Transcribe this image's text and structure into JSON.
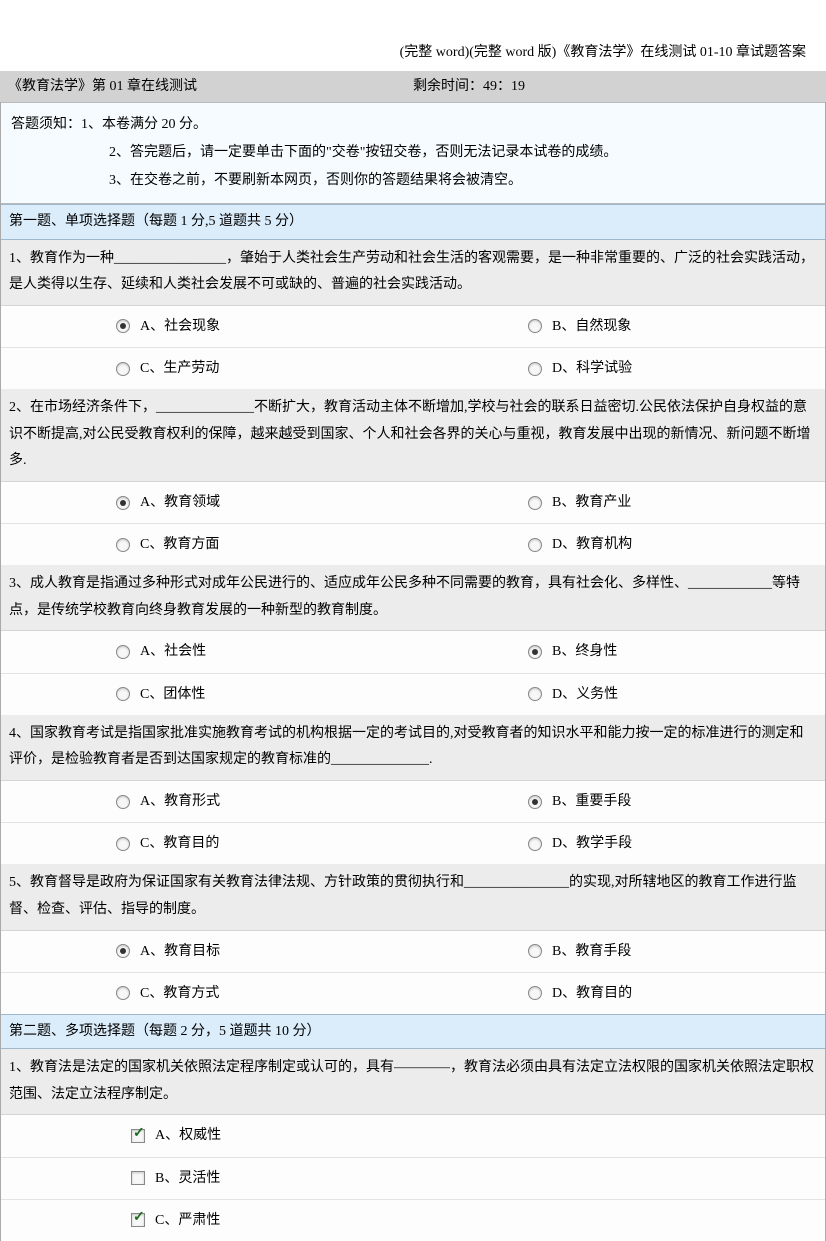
{
  "doc_title": "(完整 word)(完整 word 版)《教育法学》在线测试 01-10 章试题答案",
  "header": {
    "left": "《教育法学》第 01 章在线测试",
    "right": "剩余时间：49：19"
  },
  "instructions": {
    "line1": "答题须知：1、本卷满分 20 分。",
    "line2": "2、答完题后，请一定要单击下面的\"交卷\"按钮交卷，否则无法记录本试卷的成绩。",
    "line3": "3、在交卷之前，不要刷新本网页，否则你的答题结果将会被清空。"
  },
  "section1": {
    "title": "第一题、单项选择题（每题 1 分,5 道题共 5 分）",
    "q1": {
      "text": "1、教育作为一种________________，肇始于人类社会生产劳动和社会生活的客观需要，是一种非常重要的、广泛的社会实践活动，是人类得以生存、延续和人类社会发展不可或缺的、普遍的社会实践活动。",
      "a": "A、社会现象",
      "b": "B、自然现象",
      "c": "C、生产劳动",
      "d": "D、科学试验",
      "selected": "a"
    },
    "q2": {
      "text": "2、在市场经济条件下，______________不断扩大，教育活动主体不断增加,学校与社会的联系日益密切.公民依法保护自身权益的意识不断提高,对公民受教育权利的保障，越来越受到国家、个人和社会各界的关心与重视，教育发展中出现的新情况、新问题不断增多.",
      "a": "A、教育领域",
      "b": "B、教育产业",
      "c": "C、教育方面",
      "d": "D、教育机构",
      "selected": "a"
    },
    "q3": {
      "text": "3、成人教育是指通过多种形式对成年公民进行的、适应成年公民多种不同需要的教育，具有社会化、多样性、____________等特点，是传统学校教育向终身教育发展的一种新型的教育制度。",
      "a": "A、社会性",
      "b": "B、终身性",
      "c": "C、团体性",
      "d": "D、义务性",
      "selected": "b"
    },
    "q4": {
      "text": "4、国家教育考试是指国家批准实施教育考试的机构根据一定的考试目的,对受教育者的知识水平和能力按一定的标准进行的测定和评价，是检验教育者是否到达国家规定的教育标准的______________.",
      "a": "A、教育形式",
      "b": "B、重要手段",
      "c": "C、教育目的",
      "d": "D、教学手段",
      "selected": "b"
    },
    "q5": {
      "text": "5、教育督导是政府为保证国家有关教育法律法规、方针政策的贯彻执行和_______________的实现,对所辖地区的教育工作进行监督、检查、评估、指导的制度。",
      "a": "A、教育目标",
      "b": "B、教育手段",
      "c": "C、教育方式",
      "d": "D、教育目的",
      "selected": "a"
    }
  },
  "section2": {
    "title": "第二题、多项选择题（每题 2 分，5 道题共 10 分）",
    "q1": {
      "text": "1、教育法是法定的国家机关依照法定程序制定或认可的，具有————，教育法必须由具有法定立法权限的国家机关依照法定职权范围、法定立法程序制定。",
      "a": "A、权威性",
      "b": "B、灵活性",
      "c": "C、严肃性",
      "checked": [
        "a",
        "c"
      ]
    }
  },
  "colors": {
    "header_bg": "#d2d2d2",
    "instruction_bg": "#f5fbff",
    "section_bg": "#dbedfb",
    "question_bg": "#ececec",
    "option_bg": "#fdfdfd"
  }
}
